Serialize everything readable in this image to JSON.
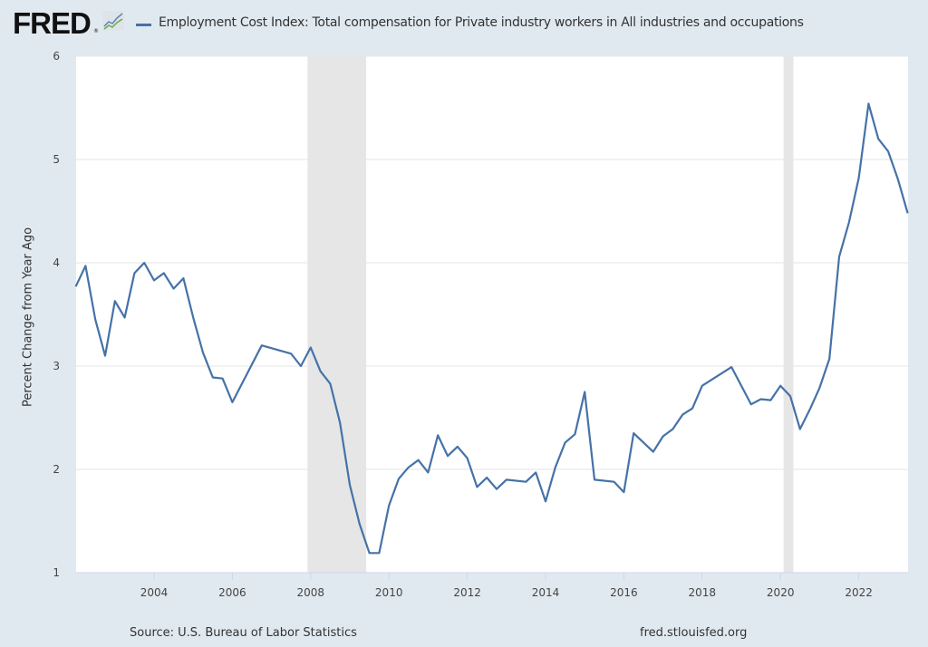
{
  "header": {
    "logo_text": "FRED",
    "logo_reg": "®",
    "logo_icon": "line-chart-icon",
    "series_title": "Employment Cost Index: Total compensation for Private industry workers in All industries and occupations"
  },
  "footer": {
    "source": "Source: U.S. Bureau of Labor Statistics",
    "url": "fred.stlouisfed.org"
  },
  "colors": {
    "series": "#4572a7",
    "recession": "#e6e6e6",
    "background": "#e1e9f0",
    "plot": "#ffffff",
    "grid": "#e6e6e6"
  },
  "chart_data": {
    "type": "line",
    "title": "Employment Cost Index: Total compensation for Private industry workers in All industries and occupations",
    "xlabel": "",
    "ylabel": "Percent Change from Year Ago",
    "ylim": [
      1,
      6
    ],
    "xlim": [
      2002.0,
      2023.25
    ],
    "yticks": [
      1,
      2,
      3,
      4,
      5,
      6
    ],
    "xticks": [
      2004,
      2006,
      2008,
      2010,
      2012,
      2014,
      2016,
      2018,
      2020,
      2022
    ],
    "grid": true,
    "legend": "top-left",
    "recessions": [
      {
        "start": 2007.92,
        "end": 2009.42
      },
      {
        "start": 2020.08,
        "end": 2020.33
      }
    ],
    "series": [
      {
        "name": "Employment Cost Index: Total compensation for Private industry workers in All industries and occupations",
        "x": [
          2002.0,
          2002.25,
          2002.5,
          2002.75,
          2003.0,
          2003.25,
          2003.5,
          2003.75,
          2004.0,
          2004.25,
          2004.5,
          2004.75,
          2005.0,
          2005.25,
          2005.5,
          2005.75,
          2006.0,
          2006.75,
          2007.5,
          2007.75,
          2008.0,
          2008.25,
          2008.5,
          2008.75,
          2009.0,
          2009.25,
          2009.5,
          2009.75,
          2010.0,
          2010.25,
          2010.5,
          2010.75,
          2011.0,
          2011.25,
          2011.5,
          2011.75,
          2012.0,
          2012.25,
          2012.5,
          2012.75,
          2013.0,
          2013.5,
          2013.75,
          2014.0,
          2014.25,
          2014.5,
          2014.75,
          2015.0,
          2015.25,
          2015.75,
          2016.0,
          2016.25,
          2016.75,
          2017.0,
          2017.25,
          2017.5,
          2017.75,
          2018.0,
          2018.75,
          2019.25,
          2019.5,
          2019.75,
          2020.0,
          2020.25,
          2020.5,
          2020.75,
          2021.0,
          2021.25,
          2021.5,
          2021.75,
          2022.0,
          2022.25,
          2022.5,
          2022.75,
          2023.0,
          2023.25
        ],
        "values": [
          3.77,
          3.97,
          3.45,
          3.1,
          3.63,
          3.47,
          3.9,
          4.0,
          3.83,
          3.9,
          3.75,
          3.85,
          3.47,
          3.13,
          2.89,
          2.88,
          2.65,
          3.2,
          3.12,
          3.0,
          3.18,
          2.95,
          2.83,
          2.45,
          1.85,
          1.47,
          1.19,
          1.19,
          1.65,
          1.91,
          2.02,
          2.09,
          1.97,
          2.33,
          2.13,
          2.22,
          2.11,
          1.83,
          1.92,
          1.81,
          1.9,
          1.88,
          1.97,
          1.69,
          2.02,
          2.26,
          2.34,
          2.75,
          1.9,
          1.88,
          1.78,
          2.35,
          2.17,
          2.32,
          2.39,
          2.53,
          2.59,
          2.81,
          2.99,
          2.63,
          2.68,
          2.67,
          2.81,
          2.71,
          2.39,
          2.58,
          2.79,
          3.07,
          4.06,
          4.39,
          4.82,
          5.54,
          5.2,
          5.08,
          4.81,
          4.48
        ]
      }
    ]
  }
}
